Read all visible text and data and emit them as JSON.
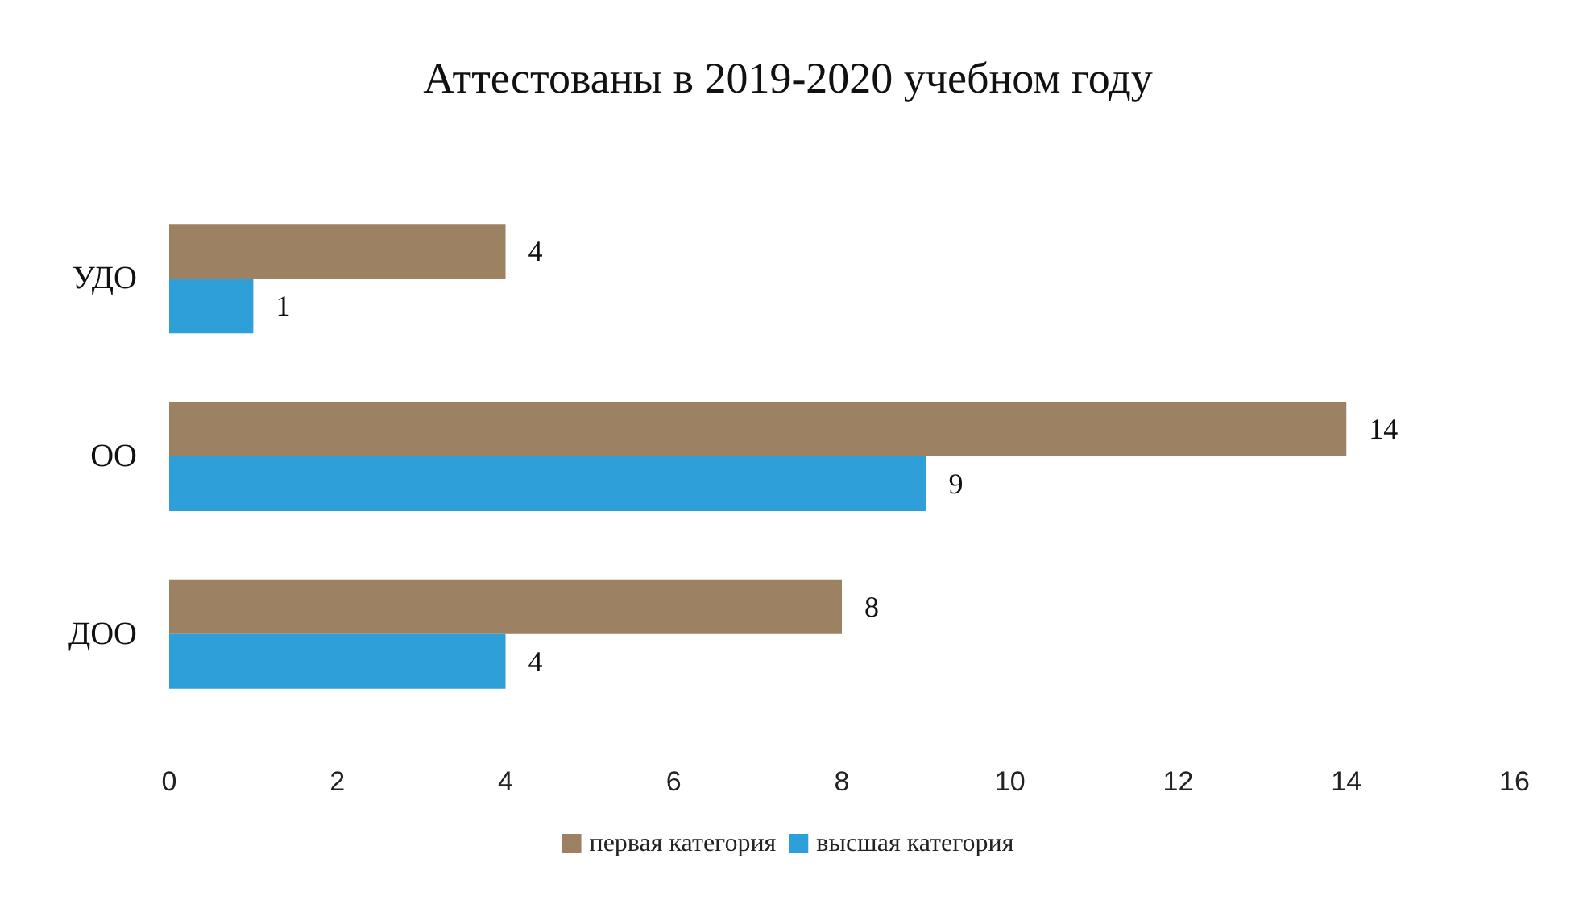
{
  "chart_data": {
    "type": "bar",
    "orientation": "horizontal",
    "title": "Аттестованы в 2019-2020 учебном году",
    "categories": [
      "УДО",
      "ОО",
      "ДОО"
    ],
    "series": [
      {
        "name": "первая категория",
        "color": "#9c8262",
        "values": [
          4,
          14,
          8
        ]
      },
      {
        "name": "высшая категория",
        "color": "#2e9fd8",
        "values": [
          1,
          9,
          4
        ]
      }
    ],
    "xlim": [
      0,
      16
    ],
    "xticks": [
      0,
      2,
      4,
      6,
      8,
      10,
      12,
      14,
      16
    ],
    "grid": false,
    "legend": "bottom",
    "data_labels": true
  }
}
